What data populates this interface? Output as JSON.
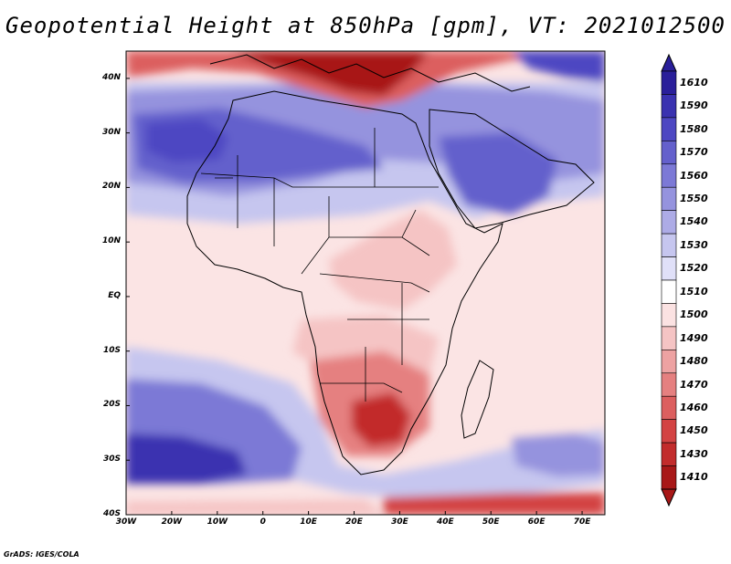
{
  "title": "Geopotential Height at 850hPa [gpm], VT: 2021012500",
  "footer": "GrADS: IGES/COLA",
  "map": {
    "lon_labels": [
      "30W",
      "20W",
      "10W",
      "0",
      "10E",
      "20E",
      "30E",
      "40E",
      "50E",
      "60E",
      "70E"
    ],
    "lat_labels": [
      "40N",
      "30N",
      "20N",
      "10N",
      "EQ",
      "10S",
      "20S",
      "30S",
      "40S"
    ],
    "lon_range": [
      -30,
      75
    ],
    "lat_range": [
      -40,
      45
    ]
  },
  "colorbar": {
    "levels": [
      "1610",
      "1590",
      "1580",
      "1570",
      "1560",
      "1550",
      "1540",
      "1530",
      "1520",
      "1510",
      "1500",
      "1490",
      "1480",
      "1470",
      "1460",
      "1450",
      "1430",
      "1410"
    ],
    "colors": [
      "#2a1f9a",
      "#3a32b0",
      "#4d47c2",
      "#6460cc",
      "#7c79d6",
      "#9593de",
      "#adabe6",
      "#c6c6ef",
      "#e0e0f8",
      "#ffffff",
      "#fbe2e2",
      "#f5c4c4",
      "#eda2a2",
      "#e58080",
      "#dc5f5f",
      "#d34343",
      "#c22c2c",
      "#a81818"
    ]
  },
  "fields": {
    "background": "#fbe4e4"
  }
}
